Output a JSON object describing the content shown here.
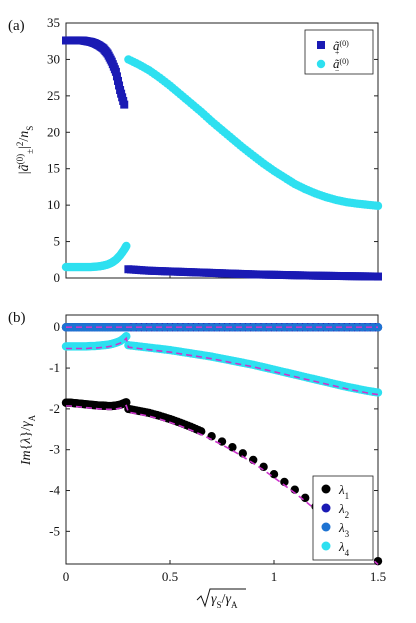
{
  "chart_data": [
    {
      "type": "scatter",
      "panel_label": "(a)",
      "xlim": [
        0,
        1.5
      ],
      "ylim": [
        0,
        35
      ],
      "yticks": [
        0,
        5,
        10,
        15,
        20,
        25,
        30,
        35
      ],
      "xticks": [],
      "ylabel": "|ã±(0)|² / nS",
      "legend": "top-right",
      "series": [
        {
          "name": "ã+(0)",
          "color": "#1a1ab4",
          "marker": "square",
          "x": [
            0,
            0.02,
            0.04,
            0.06,
            0.08,
            0.1,
            0.12,
            0.14,
            0.16,
            0.18,
            0.2,
            0.22,
            0.24,
            0.26,
            0.28,
            0.3,
            0.35,
            0.4,
            0.45,
            0.5,
            0.55,
            0.6,
            0.65,
            0.7,
            0.75,
            0.8,
            0.85,
            0.9,
            0.95,
            1.0,
            1.05,
            1.1,
            1.15,
            1.2,
            1.25,
            1.3,
            1.35,
            1.4,
            1.45,
            1.5
          ],
          "y": [
            32.6,
            32.6,
            32.6,
            32.6,
            32.6,
            32.5,
            32.4,
            32.2,
            31.9,
            31.5,
            30.8,
            29.7,
            28.3,
            25.8,
            23.8,
            1.2,
            1.1,
            1.0,
            0.95,
            0.9,
            0.85,
            0.8,
            0.75,
            0.7,
            0.65,
            0.6,
            0.55,
            0.5,
            0.47,
            0.44,
            0.41,
            0.38,
            0.35,
            0.32,
            0.3,
            0.28,
            0.26,
            0.24,
            0.22,
            0.2
          ]
        },
        {
          "name": "ã−(0)",
          "color": "#2ee0f0",
          "marker": "circle",
          "x": [
            0,
            0.02,
            0.04,
            0.06,
            0.08,
            0.1,
            0.12,
            0.14,
            0.16,
            0.18,
            0.2,
            0.22,
            0.24,
            0.26,
            0.28,
            0.29,
            0.3,
            0.35,
            0.4,
            0.45,
            0.5,
            0.55,
            0.6,
            0.65,
            0.7,
            0.75,
            0.8,
            0.85,
            0.9,
            0.95,
            1.0,
            1.05,
            1.1,
            1.15,
            1.2,
            1.25,
            1.3,
            1.35,
            1.4,
            1.45,
            1.5
          ],
          "y": [
            1.5,
            1.5,
            1.5,
            1.5,
            1.5,
            1.5,
            1.5,
            1.55,
            1.6,
            1.7,
            1.85,
            2.1,
            2.5,
            3.1,
            3.9,
            4.4,
            30.0,
            29.3,
            28.5,
            27.5,
            26.4,
            25.2,
            24.0,
            22.8,
            21.5,
            20.3,
            19.1,
            17.9,
            16.8,
            15.7,
            14.7,
            13.8,
            12.9,
            12.2,
            11.6,
            11.1,
            10.7,
            10.4,
            10.2,
            10.05,
            9.9
          ]
        }
      ]
    },
    {
      "type": "scatter",
      "panel_label": "(b)",
      "xlim": [
        0,
        1.5
      ],
      "ylim": [
        -5.8,
        0.3
      ],
      "yticks": [
        0,
        -1,
        -2,
        -3,
        -4,
        -5
      ],
      "xticks": [
        0,
        0.5,
        1,
        1.5
      ],
      "xtick_labels": [
        "0",
        "0.5",
        "1",
        "1.5"
      ],
      "ylabel": "Im{λ}/γA",
      "xlabel": "√(γS/γA)",
      "legend": "bottom-right",
      "series": [
        {
          "name": "λ1",
          "color": "#000000",
          "x": [
            0,
            0.02,
            0.04,
            0.06,
            0.08,
            0.1,
            0.12,
            0.14,
            0.16,
            0.18,
            0.2,
            0.22,
            0.24,
            0.26,
            0.28,
            0.29,
            0.3,
            0.35,
            0.4,
            0.45,
            0.5,
            0.55,
            0.6,
            0.65,
            0.7,
            0.75,
            0.8,
            0.85,
            0.9,
            0.95,
            1.0,
            1.05,
            1.1,
            1.15,
            1.2,
            1.25,
            1.3,
            1.35,
            1.4,
            1.45,
            1.5
          ],
          "y": [
            -1.85,
            -1.85,
            -1.86,
            -1.87,
            -1.88,
            -1.89,
            -1.9,
            -1.91,
            -1.92,
            -1.92,
            -1.93,
            -1.93,
            -1.92,
            -1.9,
            -1.86,
            -1.84,
            -2.0,
            -2.05,
            -2.1,
            -2.17,
            -2.25,
            -2.34,
            -2.44,
            -2.55,
            -2.67,
            -2.8,
            -2.94,
            -3.09,
            -3.25,
            -3.42,
            -3.6,
            -3.79,
            -3.98,
            -4.18,
            -4.39,
            -4.6,
            -4.82,
            -5.04,
            -5.27,
            -5.5,
            -5.73
          ]
        },
        {
          "name": "λ2",
          "color": "#1a1ab4",
          "x": [
            0,
            0.05,
            0.1,
            0.15,
            0.2,
            0.25,
            0.3,
            0.35,
            0.4,
            0.45,
            0.5,
            0.55,
            0.6,
            0.65,
            0.7,
            0.75,
            0.8,
            0.85,
            0.9,
            0.95,
            1.0,
            1.05,
            1.1,
            1.15,
            1.2,
            1.25,
            1.3,
            1.35,
            1.4,
            1.45,
            1.5
          ],
          "y": [
            0,
            0,
            0,
            0,
            0,
            0,
            0,
            0,
            0,
            0,
            0,
            0,
            0,
            0,
            0,
            0,
            0,
            0,
            0,
            0,
            0,
            0,
            0,
            0,
            0,
            0,
            0,
            0,
            0,
            0,
            0
          ]
        },
        {
          "name": "λ3",
          "color": "#1e73d2",
          "x": [
            0,
            0.05,
            0.1,
            0.15,
            0.2,
            0.25,
            0.3,
            0.4,
            0.5,
            0.6,
            0.7,
            0.8,
            0.9,
            1.0,
            1.1,
            1.2,
            1.3,
            1.4,
            1.5
          ],
          "y": [
            0,
            0,
            0,
            0,
            0,
            0,
            0,
            0,
            0,
            0,
            0,
            0,
            0,
            0,
            0,
            0,
            0,
            0,
            0
          ]
        },
        {
          "name": "λ4",
          "color": "#2ee0f0",
          "x": [
            0,
            0.02,
            0.04,
            0.06,
            0.08,
            0.1,
            0.12,
            0.14,
            0.16,
            0.18,
            0.2,
            0.22,
            0.24,
            0.26,
            0.28,
            0.29,
            0.3,
            0.35,
            0.4,
            0.45,
            0.5,
            0.55,
            0.6,
            0.65,
            0.7,
            0.75,
            0.8,
            0.85,
            0.9,
            0.95,
            1.0,
            1.05,
            1.1,
            1.15,
            1.2,
            1.25,
            1.3,
            1.35,
            1.4,
            1.45,
            1.5
          ],
          "y": [
            -0.47,
            -0.47,
            -0.47,
            -0.47,
            -0.47,
            -0.47,
            -0.46,
            -0.46,
            -0.45,
            -0.44,
            -0.43,
            -0.41,
            -0.38,
            -0.34,
            -0.27,
            -0.22,
            -0.44,
            -0.47,
            -0.5,
            -0.53,
            -0.56,
            -0.6,
            -0.64,
            -0.68,
            -0.72,
            -0.77,
            -0.82,
            -0.87,
            -0.92,
            -0.98,
            -1.04,
            -1.1,
            -1.16,
            -1.22,
            -1.28,
            -1.34,
            -1.4,
            -1.46,
            -1.51,
            -1.56,
            -1.6
          ]
        }
      ]
    }
  ]
}
